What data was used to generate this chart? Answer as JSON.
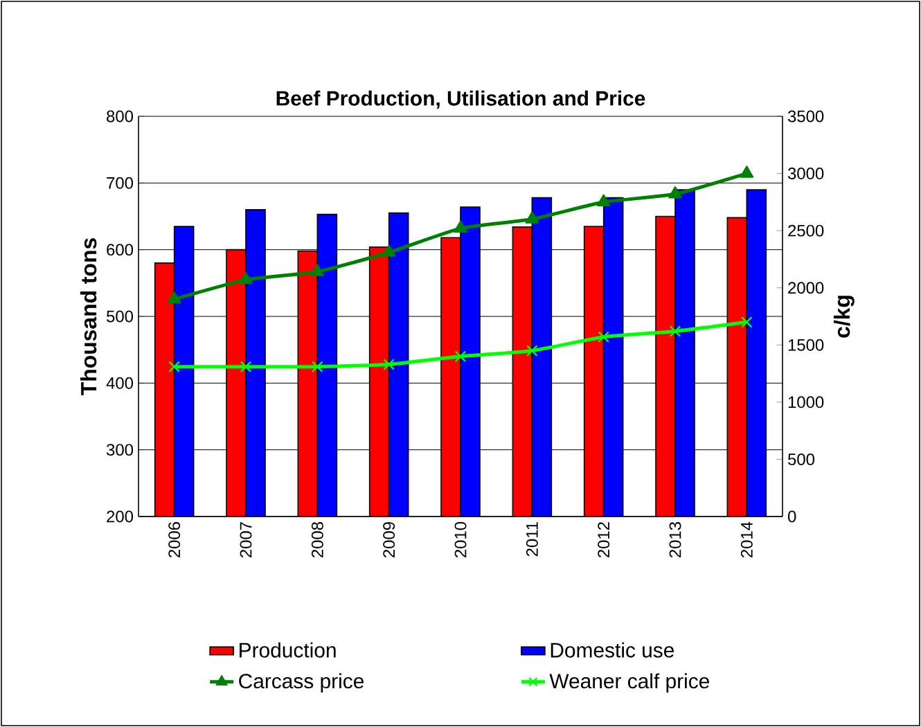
{
  "chart_data": {
    "type": "bar",
    "title": "Beef Production, Utilisation and Price",
    "ylabel": "Thousand tons",
    "y2label": "c/kg",
    "categories": [
      "2006",
      "2007",
      "2008",
      "2009",
      "2010",
      "2011",
      "2012",
      "2013",
      "2014"
    ],
    "series": [
      {
        "name": "Production",
        "color": "#ff0000",
        "values": [
          580,
          600,
          598,
          604,
          618,
          634,
          635,
          650,
          648
        ]
      },
      {
        "name": "Domestic use",
        "color": "#0000ff",
        "values": [
          635,
          660,
          653,
          655,
          664,
          678,
          678,
          690,
          690
        ]
      },
      {
        "name": "Carcass price",
        "type": "line",
        "axis": "y2",
        "marker": "triangle",
        "color": "#008000",
        "values": [
          1900,
          2070,
          2140,
          2310,
          2520,
          2600,
          2750,
          2820,
          3000
        ]
      },
      {
        "name": "Weaner calf price",
        "type": "line",
        "axis": "y2",
        "marker": "cross",
        "color": "#00ff00",
        "values": [
          1310,
          1310,
          1310,
          1330,
          1400,
          1450,
          1570,
          1620,
          1700
        ]
      }
    ],
    "ylim": [
      200,
      800
    ],
    "yticks": [
      200,
      300,
      400,
      500,
      600,
      700,
      800
    ],
    "y2lim": [
      0,
      3500
    ],
    "y2ticks": [
      0,
      500,
      1000,
      1500,
      2000,
      2500,
      3000,
      3500
    ],
    "grid": "y",
    "legend": "bottom"
  }
}
